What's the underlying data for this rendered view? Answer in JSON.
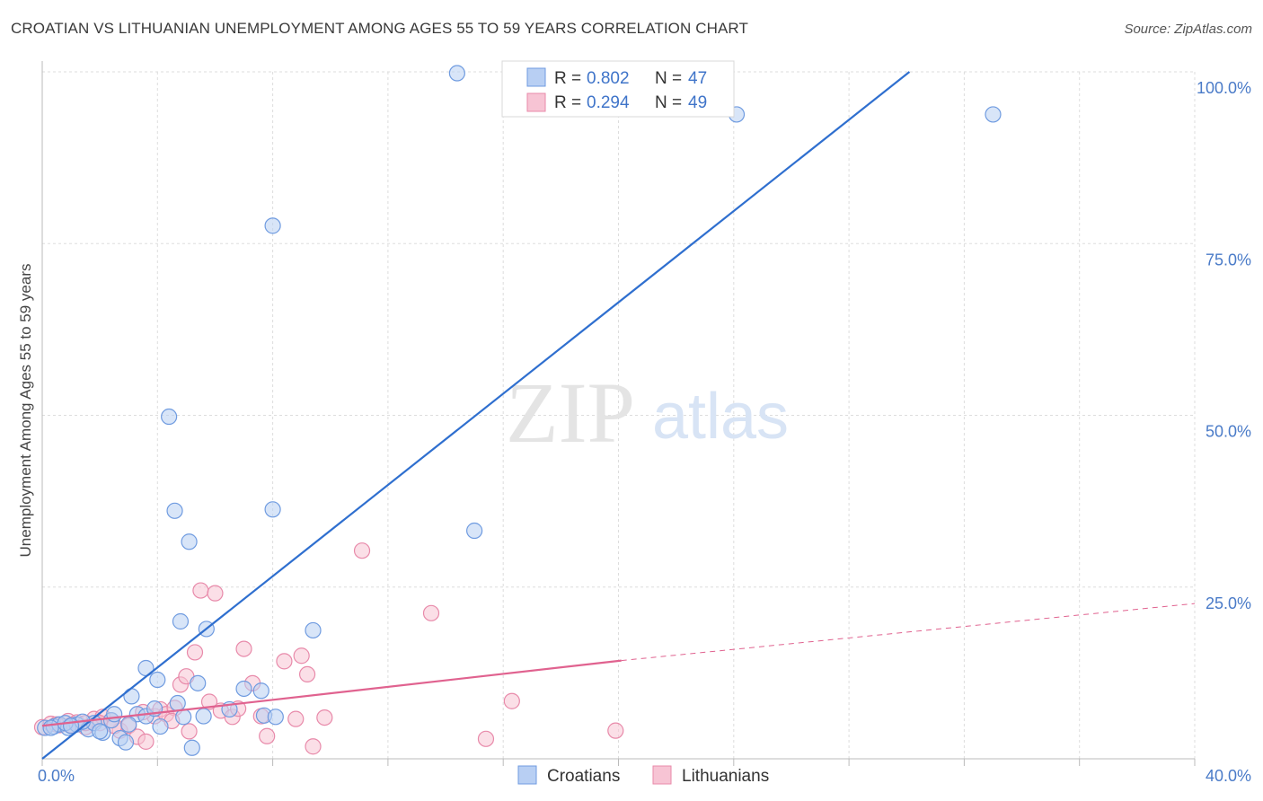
{
  "title": "CROATIAN VS LITHUANIAN UNEMPLOYMENT AMONG AGES 55 TO 59 YEARS CORRELATION CHART",
  "source": "Source: ZipAtlas.com",
  "watermark": {
    "zip": "ZIP",
    "atlas": "atlas"
  },
  "colors": {
    "croatians": "#6f9be0",
    "croatians_fill": "#b8cff3",
    "croatians_line": "#2f6fcf",
    "lithuanians": "#e88aaa",
    "lithuanians_fill": "#f7c4d4",
    "lithuanians_line": "#e0628f",
    "tick_text": "#4a7bc8",
    "grid": "#dddddd"
  },
  "legend_top": [
    {
      "r_label": "R =",
      "r": "0.802",
      "n_label": "N =",
      "n": "47"
    },
    {
      "r_label": "R =",
      "r": "0.294",
      "n_label": "N =",
      "n": "49"
    }
  ],
  "chart_data": {
    "type": "scatter",
    "title": "CROATIAN VS LITHUANIAN UNEMPLOYMENT AMONG AGES 55 TO 59 YEARS CORRELATION CHART",
    "xlabel": "",
    "ylabel": "Unemployment Among Ages 55 to 59 years",
    "xlim": [
      0,
      40
    ],
    "ylim": [
      0,
      100
    ],
    "x_tick_labels": [
      {
        "value": 0,
        "label": "0.0%"
      },
      {
        "value": 40,
        "label": "40.0%"
      }
    ],
    "y_tick_labels": [
      {
        "value": 25,
        "label": "25.0%"
      },
      {
        "value": 50,
        "label": "50.0%"
      },
      {
        "value": 75,
        "label": "75.0%"
      },
      {
        "value": 100,
        "label": "100.0%"
      }
    ],
    "legend": [
      "Croatians",
      "Lithuanians"
    ],
    "series": [
      {
        "name": "Croatians",
        "trend": {
          "x0": 0,
          "y0": 0,
          "x1": 30.1,
          "y1": 100
        },
        "points": [
          [
            0.1,
            4.5
          ],
          [
            0.4,
            4.7
          ],
          [
            0.6,
            5.0
          ],
          [
            0.9,
            4.5
          ],
          [
            1.2,
            5.0
          ],
          [
            1.6,
            4.3
          ],
          [
            1.8,
            5.2
          ],
          [
            2.1,
            3.8
          ],
          [
            2.4,
            5.6
          ],
          [
            2.7,
            3.0
          ],
          [
            2.9,
            2.4
          ],
          [
            3.3,
            6.5
          ],
          [
            3.6,
            6.2
          ],
          [
            3.9,
            7.3
          ],
          [
            4.1,
            4.7
          ],
          [
            4.7,
            8.1
          ],
          [
            4.9,
            6.1
          ],
          [
            5.2,
            1.6
          ],
          [
            2.5,
            6.5
          ],
          [
            1.4,
            5.4
          ],
          [
            0.8,
            5.2
          ],
          [
            3.1,
            9.1
          ],
          [
            3.6,
            13.2
          ],
          [
            4.0,
            11.5
          ],
          [
            4.8,
            20.0
          ],
          [
            5.4,
            11.0
          ],
          [
            5.6,
            6.2
          ],
          [
            5.7,
            18.9
          ],
          [
            6.5,
            7.2
          ],
          [
            7.0,
            10.2
          ],
          [
            7.6,
            9.9
          ],
          [
            7.7,
            6.3
          ],
          [
            8.1,
            6.1
          ],
          [
            9.4,
            18.7
          ],
          [
            4.6,
            36.1
          ],
          [
            5.1,
            31.6
          ],
          [
            4.4,
            49.8
          ],
          [
            8.0,
            36.3
          ],
          [
            15.0,
            33.2
          ],
          [
            8.0,
            77.6
          ],
          [
            14.4,
            99.8
          ],
          [
            24.1,
            93.8
          ],
          [
            33.0,
            93.8
          ],
          [
            1.0,
            4.8
          ],
          [
            0.3,
            4.5
          ],
          [
            2.0,
            4.0
          ],
          [
            3.0,
            5.0
          ]
        ]
      },
      {
        "name": "Lithuanians",
        "trend": {
          "x0": 0,
          "y0": 4.8,
          "x1": 20.1,
          "y1": 14.3,
          "x_ext": 40,
          "y_ext": 22.6
        },
        "points": [
          [
            0.0,
            4.6
          ],
          [
            0.3,
            5.1
          ],
          [
            0.6,
            4.9
          ],
          [
            0.9,
            5.5
          ],
          [
            1.2,
            5.3
          ],
          [
            1.5,
            4.6
          ],
          [
            1.8,
            5.8
          ],
          [
            2.1,
            6.1
          ],
          [
            2.4,
            5.6
          ],
          [
            2.7,
            4.1
          ],
          [
            3.0,
            4.8
          ],
          [
            3.3,
            3.2
          ],
          [
            3.6,
            2.5
          ],
          [
            3.9,
            6.2
          ],
          [
            4.1,
            7.2
          ],
          [
            4.3,
            6.5
          ],
          [
            4.6,
            7.4
          ],
          [
            4.8,
            10.8
          ],
          [
            5.0,
            12.0
          ],
          [
            5.1,
            4.0
          ],
          [
            5.3,
            15.5
          ],
          [
            5.5,
            24.5
          ],
          [
            5.8,
            8.3
          ],
          [
            6.0,
            24.1
          ],
          [
            6.2,
            7.0
          ],
          [
            6.6,
            6.1
          ],
          [
            6.8,
            7.3
          ],
          [
            7.0,
            16.0
          ],
          [
            7.3,
            11.0
          ],
          [
            7.6,
            6.2
          ],
          [
            7.8,
            3.3
          ],
          [
            8.4,
            14.2
          ],
          [
            8.8,
            5.8
          ],
          [
            9.0,
            15.0
          ],
          [
            9.2,
            12.3
          ],
          [
            9.4,
            1.8
          ],
          [
            9.8,
            6.0
          ],
          [
            11.1,
            30.3
          ],
          [
            13.5,
            21.2
          ],
          [
            15.4,
            2.9
          ],
          [
            16.3,
            8.4
          ],
          [
            19.9,
            4.1
          ],
          [
            2.0,
            5.2
          ],
          [
            1.0,
            4.9
          ],
          [
            0.5,
            5.0
          ],
          [
            3.5,
            6.8
          ],
          [
            4.5,
            5.5
          ],
          [
            2.5,
            4.8
          ],
          [
            1.5,
            5.2
          ]
        ]
      }
    ]
  }
}
